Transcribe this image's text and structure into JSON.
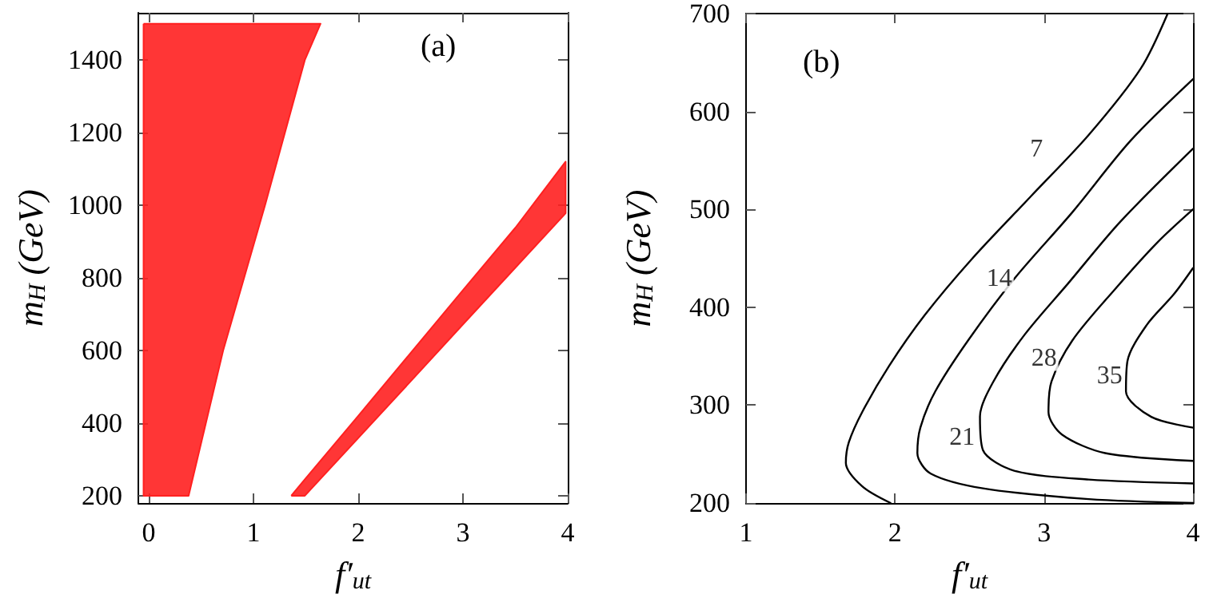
{
  "chart_data": [
    {
      "type": "area",
      "title": "(a)",
      "xlabel": "f′$_{ut}$",
      "ylabel": "m$_{H}$ (GeV)",
      "series": [
        {
          "color": "#ff2020",
          "x": [
            -0.05,
            1.64,
            1.49,
            1.11,
            0.71,
            0.38,
            -0.05,
            -0.05
          ],
          "values": [
            1500,
            1500,
            1400,
            1000,
            600,
            200,
            200,
            1500
          ]
        },
        {
          "color": "#ff2020",
          "x": [
            1.36,
            1.49,
            2.0,
            2.5,
            3.0,
            3.5,
            3.98,
            3.98,
            3.5,
            3.0,
            2.5,
            2.0,
            1.49,
            1.36
          ],
          "values": [
            200,
            200,
            359,
            515,
            672,
            828,
            978,
            1120,
            938,
            766,
            593,
            420,
            245,
            200
          ]
        }
      ],
      "xlim": [
        -0.1,
        4
      ],
      "xticks": [
        0,
        1,
        2,
        3,
        4
      ],
      "ylim": [
        180,
        1530
      ],
      "yticks": [
        200,
        400,
        600,
        800,
        1000,
        1200,
        1400
      ],
      "grid": false
    },
    {
      "type": "line",
      "title": "(b)",
      "xlabel": "f′$_{ut}$",
      "ylabel": "m$_{H}$ (GeV)",
      "series": [
        {
          "color": "#000000",
          "x": [
            1.97,
            1.78,
            1.67,
            1.69,
            1.78,
            1.96,
            2.2,
            2.52,
            2.91,
            3.3,
            3.65,
            3.83
          ],
          "values": [
            200,
            217,
            241,
            262,
            293,
            340,
            392,
            450,
            513,
            576,
            644,
            700
          ]
        },
        {
          "color": "#000000",
          "x": [
            4.0,
            3.3,
            2.59,
            2.24,
            2.15,
            2.17,
            2.27,
            2.49,
            2.8,
            3.19,
            3.58,
            4.0
          ],
          "values": [
            200,
            204,
            215,
            230,
            251,
            277,
            314,
            366,
            429,
            497,
            570,
            633
          ]
        },
        {
          "color": "#000000",
          "x": [
            4.0,
            3.3,
            2.8,
            2.59,
            2.57,
            2.66,
            2.87,
            3.16,
            3.51,
            4.0
          ],
          "values": [
            220,
            224,
            233,
            254,
            288,
            324,
            372,
            424,
            487,
            562
          ]
        },
        {
          "color": "#000000",
          "x": [
            4.0,
            3.41,
            3.12,
            3.03,
            3.05,
            3.19,
            3.48,
            3.76,
            4.0
          ],
          "values": [
            243,
            251,
            270,
            293,
            324,
            366,
            419,
            466,
            500
          ]
        },
        {
          "color": "#000000",
          "x": [
            4.0,
            3.72,
            3.55,
            3.56,
            3.69,
            3.87,
            4.0
          ],
          "values": [
            277,
            288,
            314,
            345,
            382,
            413,
            440
          ]
        }
      ],
      "annotations": [
        {
          "text": "7",
          "x": 2.95,
          "y": 561
        },
        {
          "text": "14",
          "x": 2.7,
          "y": 429
        },
        {
          "text": "21",
          "x": 2.45,
          "y": 267
        },
        {
          "text": "28",
          "x": 3.0,
          "y": 348
        },
        {
          "text": "35",
          "x": 3.44,
          "y": 330
        }
      ],
      "xlim": [
        1,
        4
      ],
      "xticks": [
        1,
        2,
        3,
        4
      ],
      "ylim": [
        200,
        700
      ],
      "yticks": [
        200,
        300,
        400,
        500,
        600,
        700
      ],
      "grid": false,
      "marker": "none",
      "line_style": "solid"
    }
  ]
}
